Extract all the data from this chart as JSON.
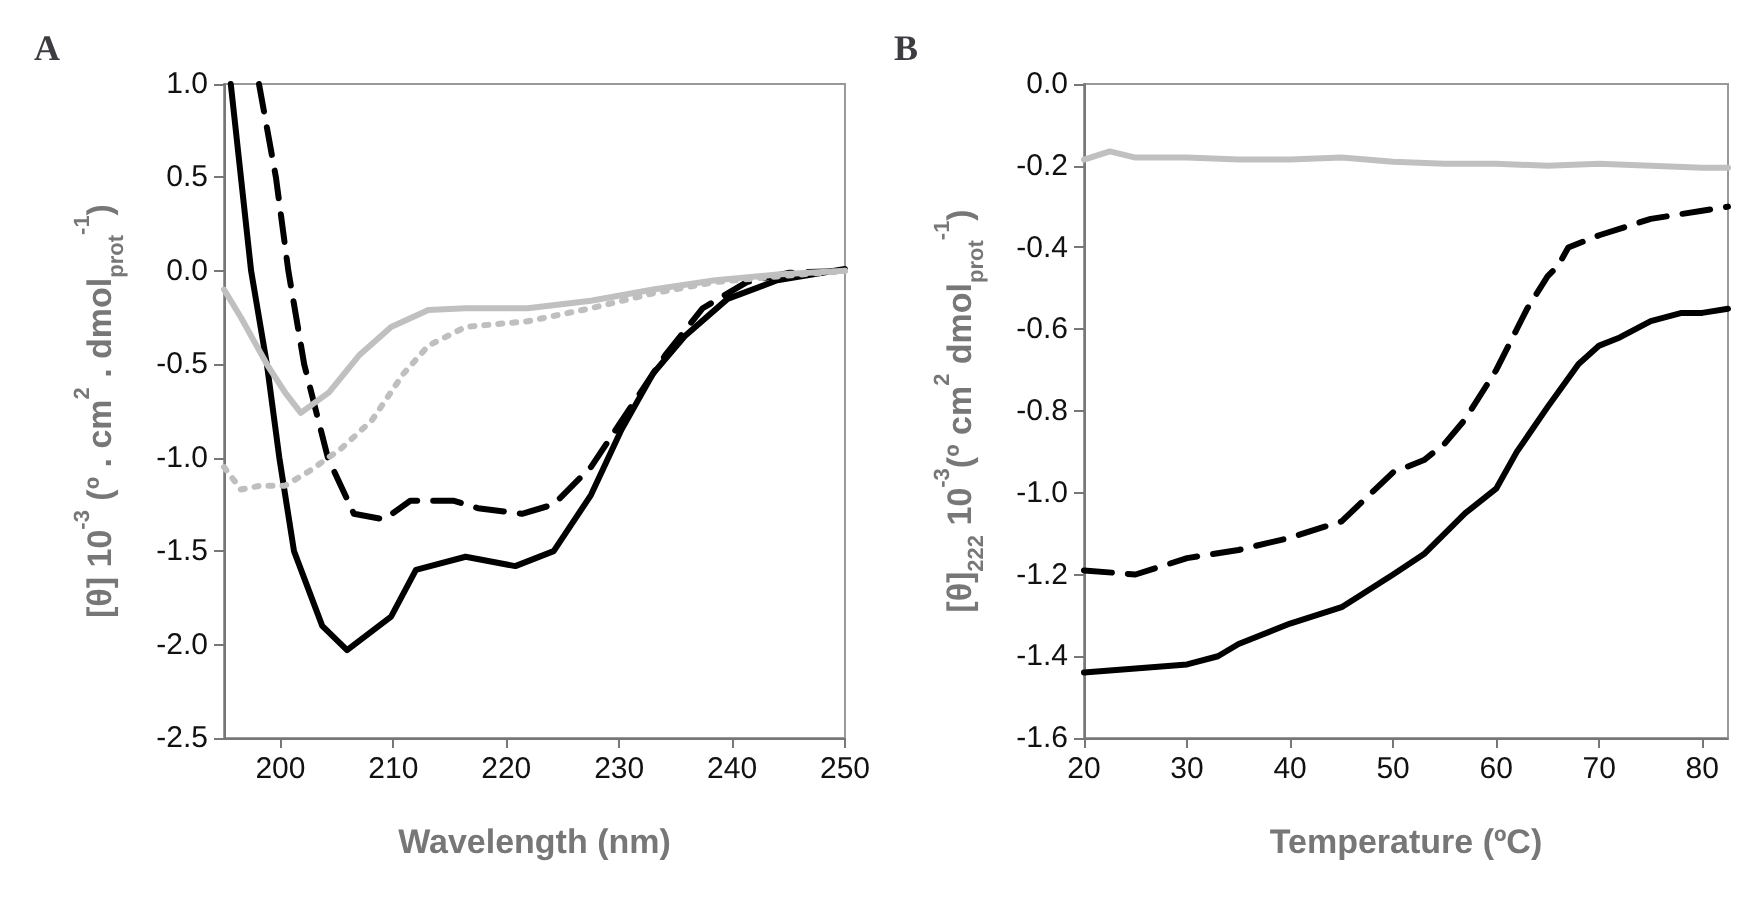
{
  "chart_data": [
    {
      "type": "line",
      "title": "A",
      "xlabel": "Wavelength (nm)",
      "ylabel": "[θ] 10$^{-3}$ (º . cm$^{2}$ . dmol$_{prot}$$^{-1}$)",
      "xlim": [
        195,
        250
      ],
      "xticks": [
        200,
        210,
        220,
        230,
        240,
        250
      ],
      "ylim": [
        -2.5,
        1.0
      ],
      "yticks": [
        {
          "value": 1,
          "label": "1.0"
        },
        0.5,
        {
          "value": 0,
          "label": "0.0"
        },
        -0.5,
        {
          "value": -1,
          "label": "-1.0"
        },
        -1.5,
        {
          "value": -2,
          "label": "-2.0"
        },
        -2.5
      ],
      "marker": "none",
      "series": [
        {
          "color": "#000000",
          "line_style": "solid",
          "x": [
            195.6,
            197.4,
            198.8,
            199.9,
            201.2,
            203.7,
            205.9,
            209.8,
            212,
            216.4,
            220.8,
            224.2,
            227.5,
            230.2,
            233,
            235.8,
            239.6,
            244,
            250
          ],
          "values": [
            1.0,
            0.0,
            -0.5,
            -1.0,
            -1.5,
            -1.9,
            -2.03,
            -1.85,
            -1.6,
            -1.53,
            -1.58,
            -1.5,
            -1.2,
            -0.85,
            -0.55,
            -0.35,
            -0.15,
            -0.05,
            0.01
          ]
        },
        {
          "color": "#000000",
          "line_style": "dashed",
          "x": [
            198.1,
            199.6,
            200.7,
            202.1,
            204.2,
            206.5,
            209.2,
            211.5,
            215.3,
            217.5,
            221.4,
            224.2,
            227.5,
            230.8,
            234.1,
            237.4,
            241.3,
            245.1,
            250
          ],
          "values": [
            1.0,
            0.5,
            0.0,
            -0.5,
            -1.0,
            -1.3,
            -1.33,
            -1.23,
            -1.23,
            -1.27,
            -1.3,
            -1.25,
            -1.05,
            -0.75,
            -0.45,
            -0.2,
            -0.06,
            -0.01,
            0.0
          ]
        },
        {
          "color": "#c0c0c0",
          "line_style": "solid",
          "x": [
            195,
            196.5,
            198.8,
            200.4,
            201.8,
            204.3,
            207,
            209.8,
            213.1,
            216.4,
            221.9,
            227.5,
            233,
            238.5,
            244,
            250
          ],
          "values": [
            -0.1,
            -0.25,
            -0.5,
            -0.65,
            -0.76,
            -0.65,
            -0.45,
            -0.3,
            -0.21,
            -0.2,
            -0.2,
            -0.16,
            -0.1,
            -0.05,
            -0.02,
            0.0
          ]
        },
        {
          "color": "#bfbfbf",
          "line_style": "dotted",
          "x": [
            195,
            196.5,
            198.2,
            200.4,
            202.6,
            205.4,
            208.1,
            210.9,
            213.1,
            216.4,
            221.9,
            227.5,
            233,
            238.5,
            244,
            250
          ],
          "values": [
            -1.05,
            -1.17,
            -1.15,
            -1.15,
            -1.07,
            -0.95,
            -0.8,
            -0.55,
            -0.4,
            -0.3,
            -0.27,
            -0.2,
            -0.12,
            -0.06,
            -0.03,
            0.0
          ]
        }
      ]
    },
    {
      "type": "line",
      "title": "B",
      "xlabel": "Temperature (ºC)",
      "ylabel": "[θ]$_{222}$ 10$^{-3}$(º cm$^{2}$ dmol$_{prot}$$^{-1}$)",
      "xlim": [
        20,
        82.5
      ],
      "xticks": [
        20,
        30,
        40,
        50,
        60,
        70,
        80
      ],
      "ylim": [
        -1.6,
        0
      ],
      "yticks": [
        {
          "value": 0,
          "label": "0.0"
        },
        -0.2,
        -0.4,
        -0.6,
        -0.8,
        {
          "value": -1,
          "label": "-1.0"
        },
        -1.2,
        -1.4,
        -1.6
      ],
      "marker": "none",
      "series": [
        {
          "color": "#c0c0c0",
          "line_style": "solid",
          "x": [
            20,
            22.5,
            25,
            30,
            35,
            40,
            45,
            50,
            55,
            60,
            65,
            70,
            75,
            80,
            82.5
          ],
          "values": [
            -0.185,
            -0.165,
            -0.18,
            -0.18,
            -0.185,
            -0.185,
            -0.18,
            -0.19,
            -0.195,
            -0.195,
            -0.2,
            -0.195,
            -0.2,
            -0.205,
            -0.205
          ]
        },
        {
          "color": "#000000",
          "line_style": "dashed",
          "x": [
            20,
            25,
            30,
            35,
            40,
            45,
            50,
            53,
            55,
            57,
            59,
            60,
            62,
            63,
            65,
            66,
            67,
            70,
            75,
            80,
            82.5
          ],
          "values": [
            -1.19,
            -1.2,
            -1.16,
            -1.14,
            -1.11,
            -1.07,
            -0.95,
            -0.92,
            -0.88,
            -0.82,
            -0.74,
            -0.7,
            -0.6,
            -0.55,
            -0.47,
            -0.445,
            -0.4,
            -0.37,
            -0.33,
            -0.31,
            -0.3
          ]
        },
        {
          "color": "#000000",
          "line_style": "solid",
          "x": [
            20,
            25,
            30,
            33,
            35,
            40,
            45,
            50,
            53,
            55,
            57,
            60,
            62,
            65,
            68,
            70,
            72,
            75,
            78,
            80,
            82.5
          ],
          "values": [
            -1.44,
            -1.43,
            -1.42,
            -1.4,
            -1.37,
            -1.32,
            -1.28,
            -1.2,
            -1.15,
            -1.1,
            -1.05,
            -0.99,
            -0.9,
            -0.79,
            -0.685,
            -0.64,
            -0.62,
            -0.58,
            -0.56,
            -0.56,
            -0.55
          ]
        }
      ]
    }
  ]
}
